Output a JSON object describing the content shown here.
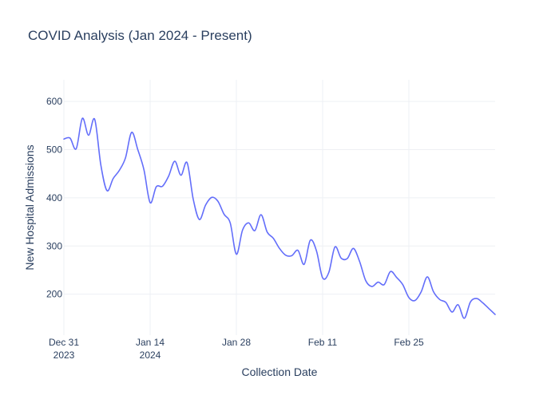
{
  "chart_data": {
    "type": "line",
    "title": "COVID Analysis (Jan 2024 - Present)",
    "xlabel": "Collection Date",
    "ylabel": "New Hospital Admissions",
    "xlim": [
      "2023-12-31",
      "2024-03-10"
    ],
    "ylim": [
      115,
      645
    ],
    "y_ticks": [
      200,
      300,
      400,
      500,
      600
    ],
    "x_ticks": [
      {
        "date": "2023-12-31",
        "line1": "Dec 31",
        "line2": "2023"
      },
      {
        "date": "2024-01-14",
        "line1": "Jan 14",
        "line2": "2024"
      },
      {
        "date": "2024-01-28",
        "line1": "Jan 28",
        "line2": ""
      },
      {
        "date": "2024-02-11",
        "line1": "Feb 11",
        "line2": ""
      },
      {
        "date": "2024-02-25",
        "line1": "Feb 25",
        "line2": ""
      }
    ],
    "grid": true,
    "color": "#636efa",
    "series": [
      {
        "x": [
          "2023-12-31",
          "2024-01-01",
          "2024-01-02",
          "2024-01-03",
          "2024-01-04",
          "2024-01-05",
          "2024-01-06",
          "2024-01-07",
          "2024-01-08",
          "2024-01-09",
          "2024-01-10",
          "2024-01-11",
          "2024-01-12",
          "2024-01-13",
          "2024-01-14",
          "2024-01-15",
          "2024-01-16",
          "2024-01-17",
          "2024-01-18",
          "2024-01-19",
          "2024-01-20",
          "2024-01-21",
          "2024-01-22",
          "2024-01-23",
          "2024-01-24",
          "2024-01-25",
          "2024-01-26",
          "2024-01-27",
          "2024-01-28",
          "2024-01-29",
          "2024-01-30",
          "2024-01-31",
          "2024-02-01",
          "2024-02-02",
          "2024-02-03",
          "2024-02-04",
          "2024-02-05",
          "2024-02-06",
          "2024-02-07",
          "2024-02-08",
          "2024-02-09",
          "2024-02-10",
          "2024-02-11",
          "2024-02-12",
          "2024-02-13",
          "2024-02-14",
          "2024-02-15",
          "2024-02-16",
          "2024-02-17",
          "2024-02-18",
          "2024-02-19",
          "2024-02-20",
          "2024-02-21",
          "2024-02-22",
          "2024-02-23",
          "2024-02-24",
          "2024-02-25",
          "2024-02-26",
          "2024-02-27",
          "2024-02-28",
          "2024-02-29",
          "2024-03-01",
          "2024-03-02",
          "2024-03-03",
          "2024-03-04",
          "2024-03-05",
          "2024-03-06",
          "2024-03-07",
          "2024-03-08",
          "2024-03-09",
          "2024-03-10"
        ],
        "y": [
          522,
          524,
          502,
          565,
          530,
          563,
          468,
          415,
          440,
          457,
          483,
          536,
          500,
          458,
          390,
          423,
          424,
          445,
          476,
          447,
          473,
          397,
          355,
          385,
          401,
          393,
          366,
          348,
          283,
          333,
          348,
          332,
          365,
          329,
          316,
          295,
          281,
          280,
          291,
          262,
          312,
          290,
          234,
          245,
          298,
          275,
          274,
          295,
          268,
          228,
          216,
          225,
          220,
          247,
          235,
          220,
          193,
          187,
          205,
          236,
          205,
          189,
          183,
          163,
          178,
          150,
          184,
          191,
          182,
          170,
          158
        ]
      }
    ]
  }
}
